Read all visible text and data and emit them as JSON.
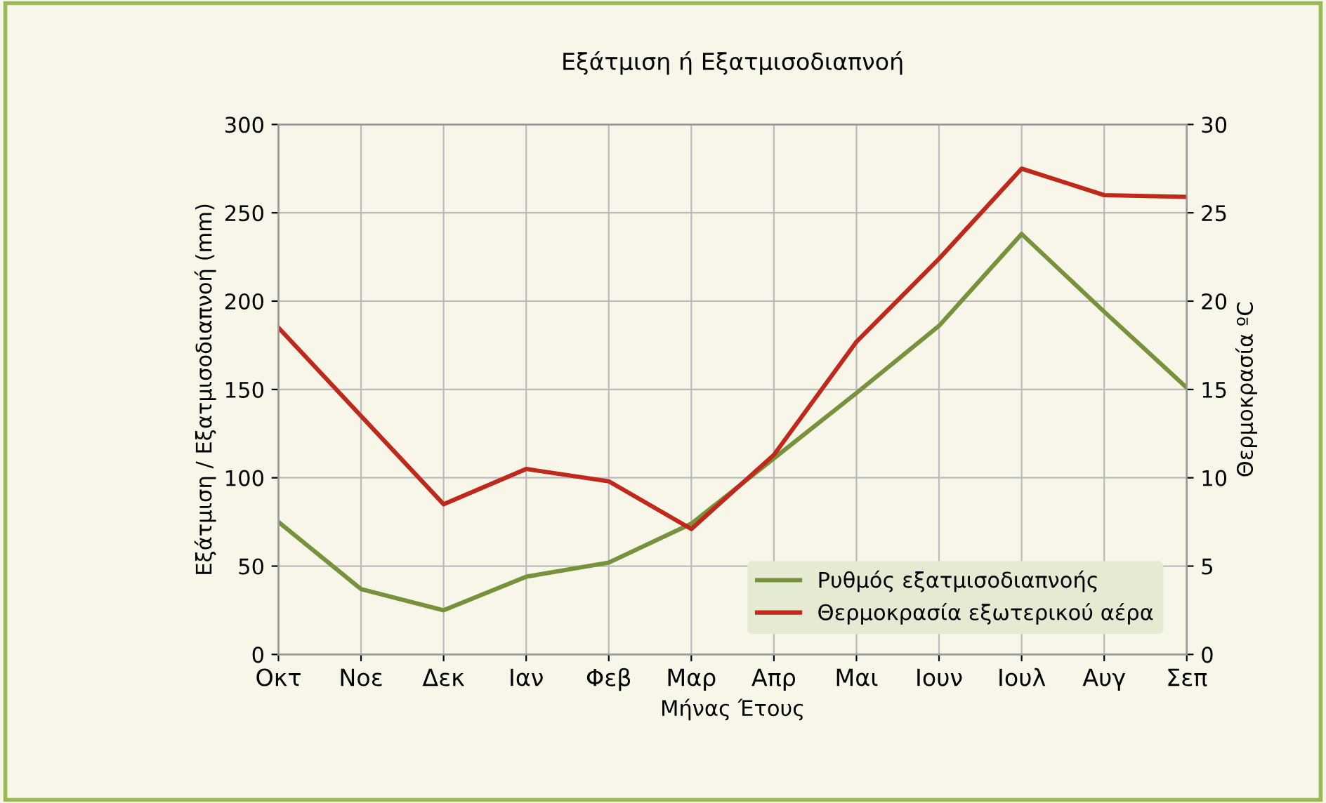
{
  "chart_data": {
    "type": "line",
    "title": "Εξάτμιση ή Εξατμισοδιαπνοή",
    "xlabel": "Μήνας Έτους",
    "ylabel": "Εξάτμιση / Εξατμισοδιαπνοή (mm)",
    "y2label": "Θερμοκρασία ºC",
    "categories": [
      "Οκτ",
      "Νοε",
      "Δεκ",
      "Ιαν",
      "Φεβ",
      "Μαρ",
      "Απρ",
      "Μαι",
      "Ιουν",
      "Ιουλ",
      "Αυγ",
      "Σεπ"
    ],
    "series": [
      {
        "name": "Ρυθμός εξατμισοδιαπνοής",
        "color": "#76923c",
        "values": [
          75,
          37,
          25,
          44,
          52,
          74,
          111,
          148,
          186,
          238,
          194,
          151
        ]
      },
      {
        "name": "Θερμοκρασία εξωτερικού αέρα",
        "color": "#c0281c",
        "axis": "y2",
        "values": [
          18.5,
          13.5,
          8.5,
          10.5,
          9.8,
          7.1,
          11.3,
          17.7,
          22.4,
          27.5,
          26.0,
          25.9
        ]
      }
    ],
    "ylim": [
      0,
      300
    ],
    "yticks": [
      0,
      50,
      100,
      150,
      200,
      250,
      300
    ],
    "y2lim": [
      0,
      30
    ],
    "y2ticks": [
      0,
      5,
      10,
      15,
      20,
      25,
      30
    ],
    "grid": true,
    "legend": "bottom right",
    "marker": "none",
    "line_style": "solid"
  }
}
